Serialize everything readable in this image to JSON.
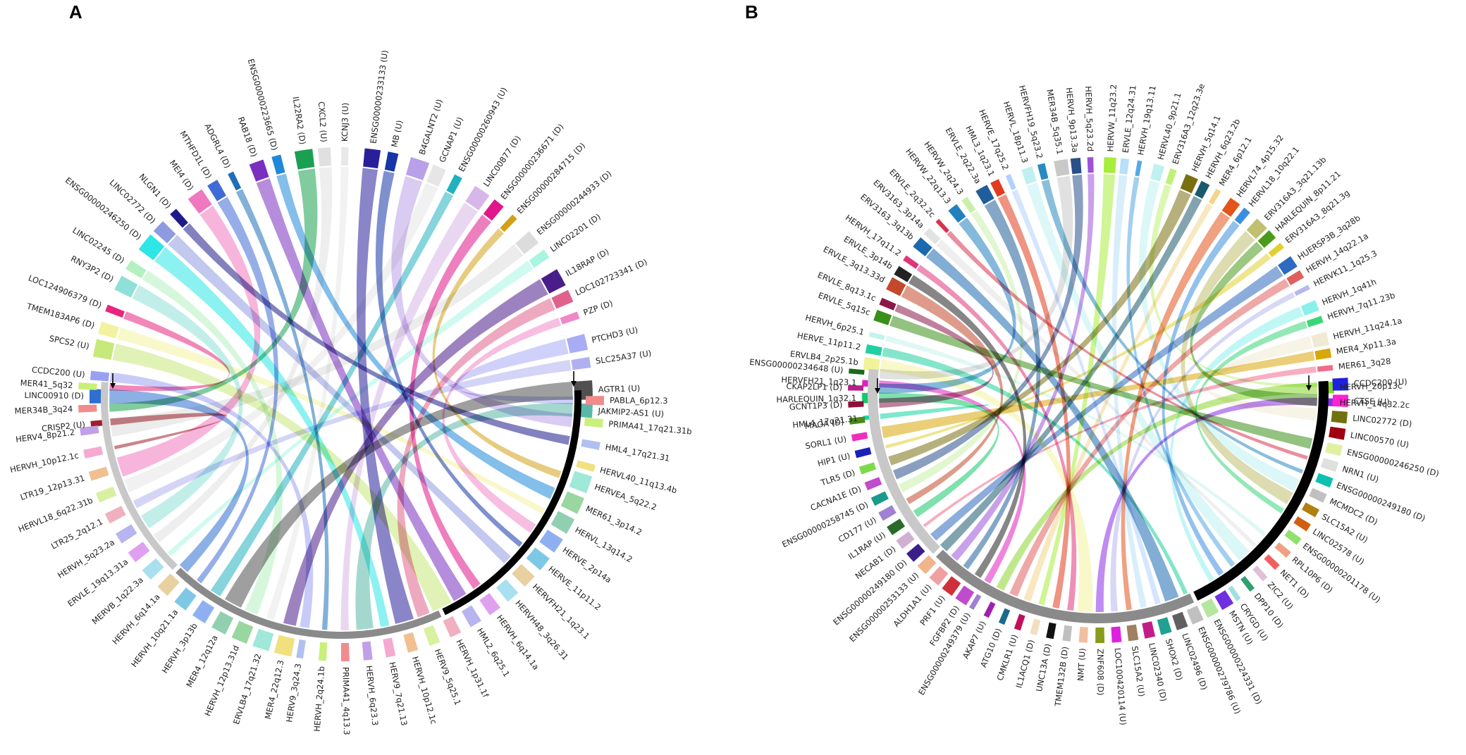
{
  "figure": {
    "panels": [
      {
        "letter": "A",
        "top_labels": [
          "CRISP2 (U)",
          "LINC00910 (D)",
          "CCDC200 (U)",
          "SPCS2 (U)",
          "TMEM183AP6 (D)",
          "LOC124906379 (D)",
          "RNY3P2 (D)",
          "LINC02245 (D)",
          "ENSG00000246250 (D)",
          "LINC02772 (D)",
          "NLGN1 (D)",
          "MEI4 (D)",
          "MTHFD1L (D)",
          "ADGRL4 (D)",
          "RAB18 (D)",
          "ENSG00000223665 (D)",
          "IL22RA2 (D)",
          "CXCL2 (U)",
          "KCNJ3 (U)",
          "ENSG00000233133 (U)",
          "MB (U)",
          "B4GALNT2 (U)",
          "GCNAP1 (U)",
          "ENSG00000260943 (U)",
          "LINC00877 (D)",
          "ENSG00000236671 (D)",
          "ENSG00000284715 (D)",
          "ENSG00000244933 (D)",
          "LINC02201 (D)",
          "IL18RAP (D)",
          "LOC102723341 (D)",
          "PZP (D)",
          "PTCHD3 (U)",
          "SLC25A37 (U)",
          "AGTR1 (U)",
          "JAKMIP2-AS1 (U)"
        ],
        "top_colors": [
          "#a31d2a",
          "#2e6fd1",
          "#9aa0f0",
          "#c7e87a",
          "#f2f2a0",
          "#e8257f",
          "#8fe0d8",
          "#b5f0c0",
          "#2ee6e6",
          "#8f9be0",
          "#1f1a8a",
          "#f078c0",
          "#3f6bd6",
          "#1c6fb8",
          "#7a2fbf",
          "#1f88d8",
          "#1aa050",
          "#e0e0e0",
          "#e8e8e8",
          "#2a1f9a",
          "#1535a8",
          "#b9a0e8",
          "#e6e6e6",
          "#22b1bf",
          "#d7b6e8",
          "#e0168a",
          "#d4a016",
          "#dcdcdc",
          "#a8f5e1",
          "#4a1e8a",
          "#e0628c",
          "#f088c8",
          "#a8acf5",
          "#b0b0f0",
          "#505050",
          "#5ab8a8"
        ],
        "bottom_labels": [
          "MER41_5q32",
          "MER34B_3q24",
          "HERV4_8p21.2",
          "HERVH_10p12.1c",
          "LTR19_12p13.31",
          "HERVL18_6q22.31b",
          "LTR25_2q12.1",
          "HERVH_5q23.2a",
          "ERVLE_19q13.31a",
          "MERVB_1q22.3a",
          "HERVH_6q14.1a",
          "HERVH_10q21.1a",
          "HERVH_3p13b",
          "MER4_12q12a",
          "HERVH_12p13.31d",
          "ERVLB4_17q21.32",
          "MER4_22q12.3",
          "HERV9_3q24.3",
          "HERVH_2q24.1b",
          "PRIMA41_4q13.3",
          "HERVH_6q23.3",
          "HERV9_7q21.13",
          "HERVH_10p12.1c",
          "HERV9_5q25.1",
          "HERVH_1p31.1f",
          "HML2_6q25.1",
          "HERVH_6q14.1a",
          "HERVH48_3q26.31",
          "HERVFH21_1q23.1",
          "HERVE_11p11.2",
          "HERVE_2p14a",
          "HERVL_13q14.2",
          "MER61_3p14.2",
          "HERVEA_5q22.2",
          "HERVL40_11q13.4b",
          "HML4_17q21.31",
          "PRIMA41_17q21.31b",
          "PABLA_6p12.3"
        ]
      },
      {
        "letter": "B",
        "top_labels": [
          "HML4_17q21.31",
          "HARLEQUIN_1q32.1",
          "HERVFH21_1q23.1",
          "ERVLB4_2p25.1b",
          "HERVE_11p11.2",
          "HERVH_6p25.1",
          "ERVLE_5q15c",
          "ERVLE_8q13.1c",
          "ERVLE_3q13.33d",
          "ERVLE_3p14b",
          "HERVH_17q11.2",
          "ERV3163_3q13b",
          "ERV3163_3p14a",
          "ERVLE_2q32.2c",
          "HERVW_22q13.3",
          "HERVW_2q24.3",
          "ERVLE_2q22.3a",
          "HML3_1q23.1",
          "HERVE_17q25.2",
          "HERVL_18p11.3",
          "HERVFH19_5q23.2",
          "MER34B_5q35.1",
          "HERVH_9p13.3a",
          "HERVH_5q23.2d",
          "HERVW_11q23.2",
          "ERVLE_12q24.31",
          "HERVH_19q13.11",
          "HERVL40_9p21.1",
          "ERV316A3_12q23.3e",
          "HERVH_5q14.1",
          "HERVH_6q23.2b",
          "MER4_6p12.1",
          "HERVL74_4p15.32",
          "HERVL18_10q22.1",
          "ERV316A3_3q21.13b",
          "HARLEQUIN_8p11.21",
          "ERV316A3_8q21.3g",
          "HUERSP3B_3q28b",
          "HERVH_14q22.1a",
          "HERVK11_1q25.3",
          "HERVH_1q41h",
          "HERVH_7q11.23b",
          "HERVH_11q24.1a",
          "MER4_Xp11.3a",
          "MER61_3q28",
          "HERVH_20p13c",
          "HERVH_14q32.2c"
        ],
        "top_colors": [
          "#12d6a4",
          "#15c96a",
          "#e020c0",
          "#f2f29c",
          "#1fd0a0",
          "#c6f2ec",
          "#3a8f1a",
          "#8a1848",
          "#c3492c",
          "#222222",
          "#e0357a",
          "#1b6ab0",
          "#e2e2e2",
          "#d9334f",
          "#2080c0",
          "#c9f0a8",
          "#1f5e9a",
          "#e23a1c",
          "#b0d0ff",
          "#c0f0f0",
          "#2a8abf",
          "#c8c8c8",
          "#2a4f8a",
          "#9c52d8",
          "#a8ec3c",
          "#b8e0f8",
          "#56a8e6",
          "#c0f0f0",
          "#bff077",
          "#7a6f10",
          "#1a5a6e",
          "#f2d58a",
          "#e2541a",
          "#3a8ee0",
          "#c0c070",
          "#4b9a1a",
          "#e2d030",
          "#2e6abf",
          "#e06060",
          "#b6b6ef",
          "#8af0ec",
          "#3ad67a",
          "#f0ead2",
          "#d8a80a",
          "#f06c8c",
          "#8ad630",
          "#8a2ee6"
        ],
        "bottom_labels": [
          "ENSG00000234648 (U)",
          "CKAP2LP1 (D)",
          "GCNT1P3 (D)",
          "MAOA (D)",
          "SORL1 (U)",
          "HIP1 (U)",
          "TLR5 (D)",
          "CACNA1E (D)",
          "ENSG00000258745 (D)",
          "CD177 (U)",
          "IL1RAP (U)",
          "NECAB1 (D)",
          "ENSG00000249180 (D)",
          "ENSG00000253133 (U)",
          "ALDH1A1 (U)",
          "PRF1 (U)",
          "FGFBP2 (D)",
          "ENSG00000249379 (U)",
          "AKAP7 (U)",
          "ATG10 (D)",
          "CMKLR1 (U)",
          "IL1ACQ1 (D)",
          "UNC13A (D)",
          "TMEM132B (D)",
          "NMT (U)",
          "ZNF608 (D)",
          "LOC100420114 (U)",
          "SLC15A2 (U)",
          "LINC02340 (D)",
          "SHOX2 (D)",
          "LINC02496 (D)",
          "ENSG00000279786 (U)",
          "ENSG00000224331 (D)",
          "MSTN (U)",
          "CRYGD (U)",
          "DPP10 (D)",
          "ZIC2 (U)",
          "NET1 (D)",
          "RPL10P6 (D)",
          "ENSG00000201178 (U)",
          "LINC02578 (U)",
          "SLC15A2 (U)",
          "MCMDC2 (D)",
          "ENSG00000249180 (D)",
          "NRN1 (U)",
          "ENSG00000246250 (D)",
          "LINC00570 (U)",
          "LINC02772 (D)",
          "CTSE (U)",
          "CCDC200 (U)"
        ],
        "bottom_colors": [
          "#1a6a1a",
          "#b81f8a",
          "#8f0f3a",
          "#4a8a1a",
          "#ef2ebf",
          "#1a1fb8",
          "#7ed94a",
          "#c04bcb",
          "#1a9a8a",
          "#a080d0",
          "#2a6a2a",
          "#d0b0d0",
          "#3a1f8a",
          "#f2b48a",
          "#f0a0a0",
          "#d0303a",
          "#c04bcb",
          "#a080d0",
          "#a01fb0",
          "#1a6a8a",
          "#c0105a",
          "#f0e0c0",
          "#111111",
          "#c0c0c0",
          "#f0c0a0",
          "#8a9a1a",
          "#e020e0",
          "#a08060",
          "#c01f8a",
          "#20a090",
          "#606060",
          "#c0c0c0",
          "#b4e6a0",
          "#7030e0",
          "#a0e0e0",
          "#30a070",
          "#e0c0d8",
          "#f06060",
          "#f0a080",
          "#90e070",
          "#d06010",
          "#b08010",
          "#c0c0c0",
          "#10c0b0",
          "#e0e0e0",
          "#e0f0a0",
          "#a00010",
          "#707010",
          "#ff20d0",
          "#2020e0"
        ]
      }
    ]
  }
}
